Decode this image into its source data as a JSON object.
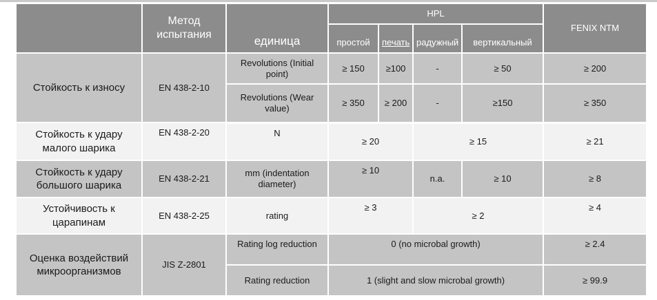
{
  "header": {
    "method": "Метод испытания",
    "unit": "единица",
    "hpl": "HPL",
    "fenix": "FENIX NTM",
    "sub": [
      "простой",
      "печать",
      "радужный",
      "вертикальный"
    ]
  },
  "rows": {
    "wear": {
      "property": "Стойкость к износу",
      "method": "EN 438-2-10",
      "initial": {
        "unit": "Revolutions (Initial point)",
        "plain": "≥ 150",
        "print": "≥100",
        "rainbow": "-",
        "vertical": "≥ 50",
        "fenix": "≥ 200"
      },
      "value": {
        "unit": "Revolutions (Wear value)",
        "plain": "≥ 350",
        "print": "≥ 200",
        "rainbow": "-",
        "vertical": "≥150",
        "fenix": "≥ 350"
      }
    },
    "small_ball": {
      "property": "Стойкость к удару малого шарика",
      "method": "EN 438-2-20",
      "unit": "N",
      "plain_print": "≥ 20",
      "rainbow_vertical": "≥ 15",
      "fenix": "≥ 21"
    },
    "big_ball": {
      "property": "Стойкость к удару большого шарика",
      "method": "EN 438-2-21",
      "unit": "mm (indentation diameter)",
      "plain_print": "≥ 10",
      "rainbow": "n.a.",
      "vertical": "≥ 10",
      "fenix": "≥ 8"
    },
    "scratch": {
      "property": "Устойчивость к царапинам",
      "method": "EN 438-2-25",
      "unit": "rating",
      "plain_print": "≥ 3",
      "rainbow_vertical": "≥ 2",
      "fenix": "≥ 4"
    },
    "micro": {
      "property": "Оценка воздействий микроорганизмов",
      "method": "JIS Z-2801",
      "log": {
        "unit": "Rating log reduction",
        "hpl": "0 (no microbal growth)",
        "fenix": "≥ 2.4"
      },
      "red": {
        "unit": "Rating reduction",
        "hpl": "1 (slight and slow microbal growth)",
        "fenix": "≥ 99.9"
      }
    }
  }
}
